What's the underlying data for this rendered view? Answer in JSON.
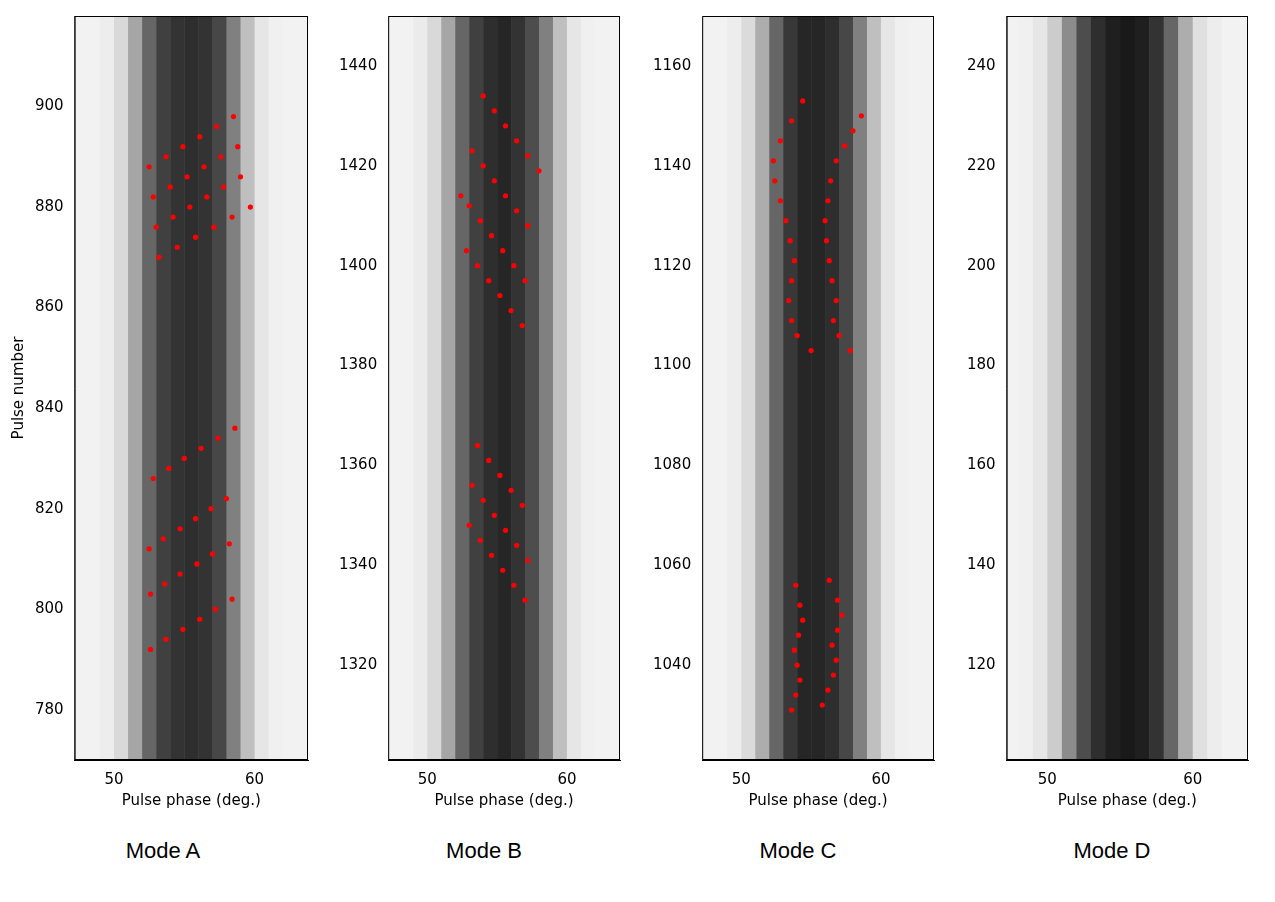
{
  "chart_data": [
    {
      "type": "scatter",
      "caption": "Mode A",
      "x_label": "Pulse phase (deg.)",
      "y_label": "Pulse number",
      "xlim": [
        47.2,
        63.8
      ],
      "xticks": [
        50,
        60
      ],
      "ylim": [
        770,
        918
      ],
      "yticks": [
        780,
        800,
        820,
        840,
        860,
        880,
        900
      ],
      "grid": false,
      "color": "#ff0000",
      "marker": "circle",
      "heatmap": {
        "phase_bins": [
          47,
          48,
          49,
          50,
          51,
          52,
          53,
          54,
          55,
          56,
          57,
          58,
          59,
          60,
          61,
          62,
          63,
          64
        ],
        "intensity": [
          0.05,
          0.05,
          0.07,
          0.15,
          0.35,
          0.6,
          0.75,
          0.8,
          0.82,
          0.8,
          0.72,
          0.5,
          0.25,
          0.1,
          0.06,
          0.05,
          0.05
        ]
      },
      "tracks": [
        {
          "x": [
            52.6,
            53.7,
            54.9,
            56.1,
            57.2,
            58.4
          ],
          "y": [
            792,
            794,
            796,
            798,
            800,
            802
          ]
        },
        {
          "x": [
            52.6,
            53.6,
            54.7,
            55.9,
            57.0,
            58.2
          ],
          "y": [
            803,
            805,
            807,
            809,
            811,
            813
          ]
        },
        {
          "x": [
            52.5,
            53.5,
            54.7,
            55.8,
            56.9,
            58.0
          ],
          "y": [
            812,
            814,
            816,
            818,
            820,
            822
          ]
        },
        {
          "x": [
            52.8,
            53.9,
            55.0,
            56.2,
            57.4,
            58.6
          ],
          "y": [
            826,
            828,
            830,
            832,
            834,
            836
          ]
        },
        {
          "x": [
            53.2,
            54.5,
            55.8,
            57.1,
            58.4,
            59.7
          ],
          "y": [
            870,
            872,
            874,
            876,
            878,
            880
          ]
        },
        {
          "x": [
            53.0,
            54.2,
            55.4,
            56.6,
            57.8,
            59.0
          ],
          "y": [
            876,
            878,
            880,
            882,
            884,
            886
          ]
        },
        {
          "x": [
            52.8,
            54.0,
            55.2,
            56.4,
            57.6,
            58.8
          ],
          "y": [
            882,
            884,
            886,
            888,
            890,
            892
          ]
        },
        {
          "x": [
            52.5,
            53.7,
            54.9,
            56.1,
            57.3,
            58.5
          ],
          "y": [
            888,
            890,
            892,
            894,
            896,
            898
          ]
        }
      ]
    },
    {
      "type": "scatter",
      "caption": "Mode B",
      "x_label": "Pulse phase (deg.)",
      "xlim": [
        47.2,
        63.8
      ],
      "xticks": [
        50,
        60
      ],
      "ylim": [
        1301,
        1450
      ],
      "yticks": [
        1320,
        1340,
        1360,
        1380,
        1400,
        1420,
        1440
      ],
      "grid": false,
      "color": "#ff0000",
      "marker": "circle",
      "heatmap": {
        "phase_bins": [
          47,
          48,
          49,
          50,
          51,
          52,
          53,
          54,
          55,
          56,
          57,
          58,
          59,
          60,
          61,
          62,
          63,
          64
        ],
        "intensity": [
          0.05,
          0.05,
          0.08,
          0.15,
          0.35,
          0.6,
          0.75,
          0.82,
          0.85,
          0.8,
          0.7,
          0.5,
          0.25,
          0.1,
          0.06,
          0.05,
          0.05
        ]
      },
      "tracks": [
        {
          "x": [
            57.0,
            56.2,
            55.4,
            54.6,
            53.8,
            53.0
          ],
          "y": [
            1333,
            1336,
            1339,
            1342,
            1345,
            1348
          ]
        },
        {
          "x": [
            57.2,
            56.4,
            55.6,
            54.8,
            54.0,
            53.2
          ],
          "y": [
            1341,
            1344,
            1347,
            1350,
            1353,
            1356
          ]
        },
        {
          "x": [
            56.8,
            56.0,
            55.2,
            54.4,
            53.6
          ],
          "y": [
            1352,
            1355,
            1358,
            1361,
            1364
          ]
        },
        {
          "x": [
            56.8,
            56.0,
            55.2,
            54.4,
            53.6,
            52.8
          ],
          "y": [
            1388,
            1391,
            1394,
            1397,
            1400,
            1403
          ]
        },
        {
          "x": [
            57.0,
            56.2,
            55.4,
            54.6,
            53.8,
            53.0,
            52.4
          ],
          "y": [
            1397,
            1400,
            1403,
            1406,
            1409,
            1412,
            1414
          ]
        },
        {
          "x": [
            57.2,
            56.4,
            55.6,
            54.8,
            54.0,
            53.2
          ],
          "y": [
            1408,
            1411,
            1414,
            1417,
            1420,
            1423
          ]
        },
        {
          "x": [
            58.0,
            57.2,
            56.4,
            55.6,
            54.8,
            54.0
          ],
          "y": [
            1419,
            1422,
            1425,
            1428,
            1431,
            1434
          ]
        }
      ]
    },
    {
      "type": "scatter",
      "caption": "Mode C",
      "x_label": "Pulse phase (deg.)",
      "xlim": [
        47.2,
        63.8
      ],
      "xticks": [
        50,
        60
      ],
      "ylim": [
        1021,
        1170
      ],
      "yticks": [
        1040,
        1060,
        1080,
        1100,
        1120,
        1140,
        1160
      ],
      "grid": false,
      "color": "#ff0000",
      "marker": "circle",
      "heatmap": {
        "phase_bins": [
          47,
          48,
          49,
          50,
          51,
          52,
          53,
          54,
          55,
          56,
          57,
          58,
          59,
          60,
          61,
          62,
          63,
          64
        ],
        "intensity": [
          0.05,
          0.05,
          0.07,
          0.14,
          0.32,
          0.6,
          0.78,
          0.85,
          0.85,
          0.82,
          0.72,
          0.5,
          0.25,
          0.1,
          0.06,
          0.05,
          0.05
        ]
      },
      "tracks": [
        {
          "x": [
            53.6,
            53.9,
            54.2,
            54.0,
            53.8,
            54.1,
            54.4,
            54.2,
            53.9
          ],
          "y": [
            1031,
            1034,
            1037,
            1040,
            1043,
            1046,
            1049,
            1052,
            1056
          ]
        },
        {
          "x": [
            55.8,
            56.2,
            56.6,
            56.8,
            56.5,
            56.9,
            57.2,
            56.9,
            56.3
          ],
          "y": [
            1032,
            1035,
            1038,
            1041,
            1044,
            1047,
            1050,
            1053,
            1057
          ]
        },
        {
          "x": [
            55.0,
            54.0,
            53.6,
            53.4,
            53.6,
            53.8,
            53.5,
            53.2,
            52.8,
            52.4,
            52.3,
            52.8,
            53.6,
            54.4
          ],
          "y": [
            1103,
            1106,
            1109,
            1113,
            1117,
            1121,
            1125,
            1129,
            1133,
            1137,
            1141,
            1145,
            1149,
            1153
          ]
        },
        {
          "x": [
            57.8,
            57.0,
            56.6,
            56.8,
            56.5,
            56.3,
            56.1,
            56.0,
            56.2,
            56.4,
            56.8,
            57.4,
            58.0,
            58.6
          ],
          "y": [
            1103,
            1106,
            1109,
            1113,
            1117,
            1121,
            1125,
            1129,
            1133,
            1137,
            1141,
            1144,
            1147,
            1150
          ]
        }
      ]
    },
    {
      "type": "scatter",
      "caption": "Mode D",
      "x_label": "Pulse phase (deg.)",
      "xlim": [
        47.2,
        63.8
      ],
      "xticks": [
        50,
        60
      ],
      "ylim": [
        101,
        250
      ],
      "yticks": [
        120,
        140,
        160,
        180,
        200,
        220,
        240
      ],
      "grid": false,
      "color": "#ff0000",
      "marker": "circle",
      "heatmap": {
        "phase_bins": [
          47,
          48,
          49,
          50,
          51,
          52,
          53,
          54,
          55,
          56,
          57,
          58,
          59,
          60,
          61,
          62,
          63,
          64
        ],
        "intensity": [
          0.05,
          0.06,
          0.1,
          0.2,
          0.45,
          0.7,
          0.82,
          0.88,
          0.9,
          0.88,
          0.8,
          0.6,
          0.32,
          0.12,
          0.07,
          0.05,
          0.05
        ]
      },
      "tracks": []
    }
  ]
}
